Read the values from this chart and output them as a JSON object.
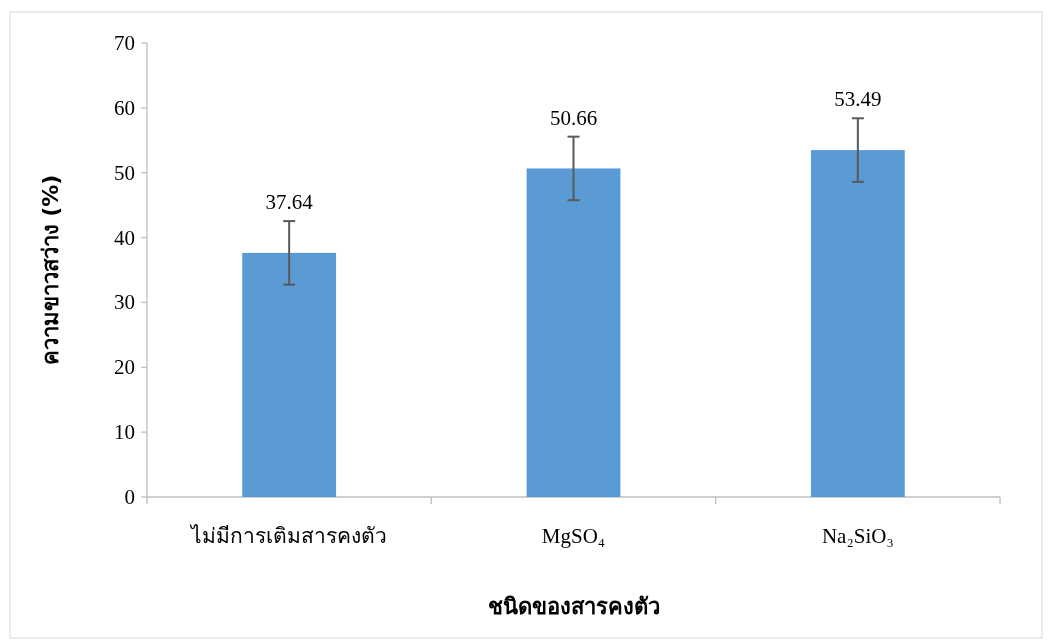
{
  "chart_data": {
    "type": "bar",
    "xlabel": "ชนิดของสารคงตัว",
    "ylabel": "ความขาวสว่าง (%)",
    "categories": [
      "ไม่มีการเติมสารคงตัว",
      "MgSO₄",
      "Na₂SiO₃"
    ],
    "values": [
      37.64,
      50.66,
      53.49
    ],
    "errors": [
      4.9,
      4.9,
      4.9
    ],
    "color": "#5b9bd5",
    "data_labels": true,
    "ylim": [
      0,
      70
    ],
    "yticks": [
      0,
      10,
      20,
      30,
      40,
      50,
      60,
      70
    ],
    "grid": false
  }
}
